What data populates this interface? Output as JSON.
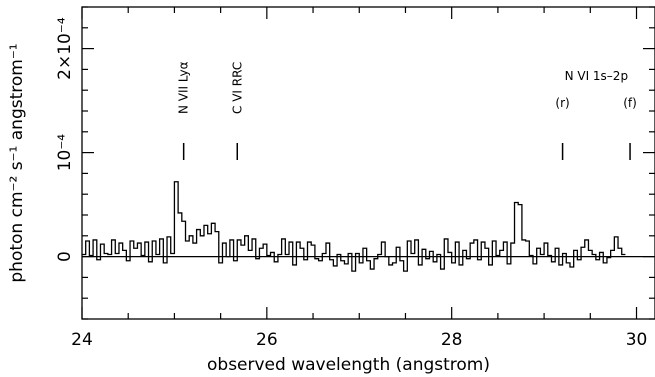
{
  "chart_data": {
    "type": "line",
    "step": true,
    "xlabel": "observed wavelength (angstrom)",
    "ylabel": "photon cm⁻² s⁻¹ angstrom⁻¹",
    "xlim": [
      24,
      30.2
    ],
    "ylim": [
      -6e-05,
      0.00024
    ],
    "x_ticks": [
      24,
      26,
      28,
      30
    ],
    "x_tick_labels": [
      "24",
      "26",
      "28",
      "30"
    ],
    "y_ticks": [
      0,
      0.0001,
      0.0002
    ],
    "y_tick_labels": [
      "0",
      "10⁻⁴",
      "2×10⁻⁴"
    ],
    "baseline": 0,
    "annotations": [
      {
        "label": "N VII Lyα",
        "x": 25.1
      },
      {
        "label": "C VI RRC",
        "x": 25.68
      },
      {
        "label": "(r)",
        "x": 29.2
      },
      {
        "label": "(f)",
        "x": 29.93
      }
    ],
    "annotation_group_label": "N VI 1s–2p",
    "bin_width": 0.04,
    "x_start": 24.0,
    "values": [
      2e-06,
      1.5e-05,
      1e-06,
      1.6e-05,
      -3e-06,
      1.2e-05,
      3e-06,
      2e-06,
      1.6e-05,
      3e-06,
      1.3e-05,
      6e-06,
      -4e-06,
      1.5e-05,
      8e-06,
      1.3e-05,
      1e-06,
      1.4e-05,
      -5e-06,
      1.5e-05,
      2e-06,
      1.7e-05,
      -6e-06,
      1.9e-05,
      3e-06,
      7.2e-05,
      4.2e-05,
      3.4e-05,
      1.5e-05,
      2e-05,
      1.3e-05,
      2.6e-05,
      2e-05,
      3e-05,
      2.2e-05,
      3.2e-05,
      2.4e-05,
      -6e-06,
      1.3e-05,
      0,
      1.6e-05,
      -4e-06,
      1.6e-05,
      1.1e-05,
      2e-05,
      6e-06,
      1.7e-05,
      -2e-06,
      8e-06,
      1.2e-05,
      1e-06,
      4e-06,
      -5e-06,
      2e-06,
      1.7e-05,
      2e-06,
      1.4e-05,
      -8e-06,
      1.4e-05,
      8e-06,
      -3e-06,
      1.4e-05,
      1.1e-05,
      -2e-06,
      -4e-06,
      3e-06,
      1.3e-05,
      -3e-06,
      -9e-06,
      2e-06,
      -4e-06,
      -7e-06,
      3e-06,
      -1.4e-05,
      3e-06,
      -6e-06,
      8e-06,
      -4e-06,
      -1.2e-05,
      -2e-06,
      2e-06,
      1.4e-05,
      0,
      -8e-06,
      -6e-06,
      9e-06,
      -4e-06,
      -1.4e-05,
      1.5e-05,
      3e-06,
      1.6e-05,
      -8e-06,
      7e-06,
      -2e-06,
      5e-06,
      -5e-06,
      2e-06,
      -1.2e-05,
      1.7e-05,
      4e-06,
      -6e-06,
      1.4e-05,
      -8e-06,
      6e-06,
      -2e-06,
      1.3e-05,
      1.6e-05,
      -3e-06,
      1.4e-05,
      8e-06,
      -8e-06,
      1.5e-05,
      1e-06,
      6e-06,
      1.4e-05,
      -7e-06,
      1.3e-05,
      5.2e-05,
      5e-05,
      1.6e-05,
      1.5e-05,
      1e-06,
      -7e-06,
      8e-06,
      2e-06,
      1.3e-05,
      1e-06,
      -5e-06,
      8e-06,
      -8e-06,
      3e-06,
      -6e-06,
      -1e-05,
      6e-06,
      -3e-06,
      9e-06,
      1.6e-05,
      6e-06,
      2e-06,
      -3e-06,
      4e-06,
      -6e-06,
      -1e-06,
      6e-06,
      1.9e-05,
      8e-06,
      2e-06
    ]
  }
}
